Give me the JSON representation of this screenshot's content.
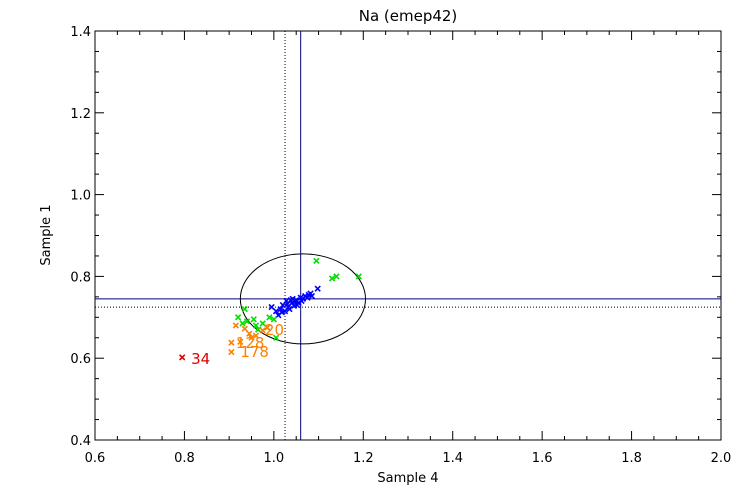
{
  "chart_data": {
    "type": "scatter",
    "title": "Na (emep42)",
    "xlabel": "Sample 4",
    "ylabel": "Sample 1",
    "xlim": [
      0.6,
      2.0
    ],
    "ylim": [
      0.4,
      1.4
    ],
    "x_ticks": [
      "0.6",
      "0.8",
      "1.0",
      "1.2",
      "1.4",
      "1.6",
      "1.8",
      "2.0"
    ],
    "y_ticks": [
      "0.4",
      "0.6",
      "0.8",
      "1.0",
      "1.2",
      "1.4"
    ],
    "ref_lines": {
      "solid_x": 1.06,
      "dotted_x": 1.025,
      "solid_y": 0.745,
      "dotted_y": 0.725
    },
    "ellipse": {
      "cx": 1.065,
      "cy": 0.745,
      "rx": 0.14,
      "ry": 0.11
    },
    "colors": {
      "blue": "#0000ff",
      "green": "#00e000",
      "orange": "#ff7f00",
      "red": "#e00000"
    },
    "series": [
      {
        "color": "blue",
        "points": [
          [
            0.995,
            0.725
          ],
          [
            1.005,
            0.715
          ],
          [
            1.01,
            0.705
          ],
          [
            1.015,
            0.72
          ],
          [
            1.02,
            0.73
          ],
          [
            1.025,
            0.715
          ],
          [
            1.028,
            0.74
          ],
          [
            1.032,
            0.725
          ],
          [
            1.035,
            0.72
          ],
          [
            1.04,
            0.735
          ],
          [
            1.042,
            0.745
          ],
          [
            1.045,
            0.728
          ],
          [
            1.048,
            0.738
          ],
          [
            1.05,
            0.742
          ],
          [
            1.055,
            0.735
          ],
          [
            1.06,
            0.748
          ],
          [
            1.062,
            0.74
          ],
          [
            1.065,
            0.745
          ],
          [
            1.07,
            0.752
          ],
          [
            1.075,
            0.748
          ],
          [
            1.078,
            0.755
          ],
          [
            1.082,
            0.758
          ],
          [
            1.085,
            0.752
          ],
          [
            1.098,
            0.77
          ],
          [
            1.018,
            0.712
          ],
          [
            1.03,
            0.732
          ],
          [
            1.038,
            0.742
          ],
          [
            1.052,
            0.73
          ]
        ]
      },
      {
        "color": "green",
        "points": [
          [
            0.92,
            0.7
          ],
          [
            0.935,
            0.72
          ],
          [
            0.94,
            0.69
          ],
          [
            0.955,
            0.695
          ],
          [
            0.96,
            0.68
          ],
          [
            0.965,
            0.67
          ],
          [
            0.975,
            0.685
          ],
          [
            0.985,
            0.675
          ],
          [
            0.99,
            0.7
          ],
          [
            1.0,
            0.695
          ],
          [
            1.005,
            0.65
          ],
          [
            1.095,
            0.838
          ],
          [
            1.13,
            0.795
          ],
          [
            1.14,
            0.8
          ],
          [
            1.19,
            0.8
          ],
          [
            0.93,
            0.685
          ]
        ]
      },
      {
        "color": "orange",
        "points": [
          [
            0.905,
            0.615
          ],
          [
            0.905,
            0.638
          ],
          [
            0.915,
            0.68
          ],
          [
            0.925,
            0.64
          ],
          [
            0.935,
            0.672
          ],
          [
            0.945,
            0.66
          ],
          [
            0.95,
            0.65
          ],
          [
            0.985,
            0.675
          ],
          [
            0.975,
            0.668
          ],
          [
            0.96,
            0.655
          ]
        ]
      },
      {
        "color": "red",
        "points": [
          [
            0.795,
            0.602
          ]
        ]
      }
    ],
    "annotations": [
      {
        "text": "34",
        "x": 0.815,
        "y": 0.6,
        "color": "red"
      },
      {
        "text": "178",
        "x": 0.925,
        "y": 0.617,
        "color": "orange"
      },
      {
        "text": "128",
        "x": 0.915,
        "y": 0.64,
        "color": "orange"
      },
      {
        "text": "20",
        "x": 0.98,
        "y": 0.672,
        "color": "orange"
      }
    ]
  }
}
